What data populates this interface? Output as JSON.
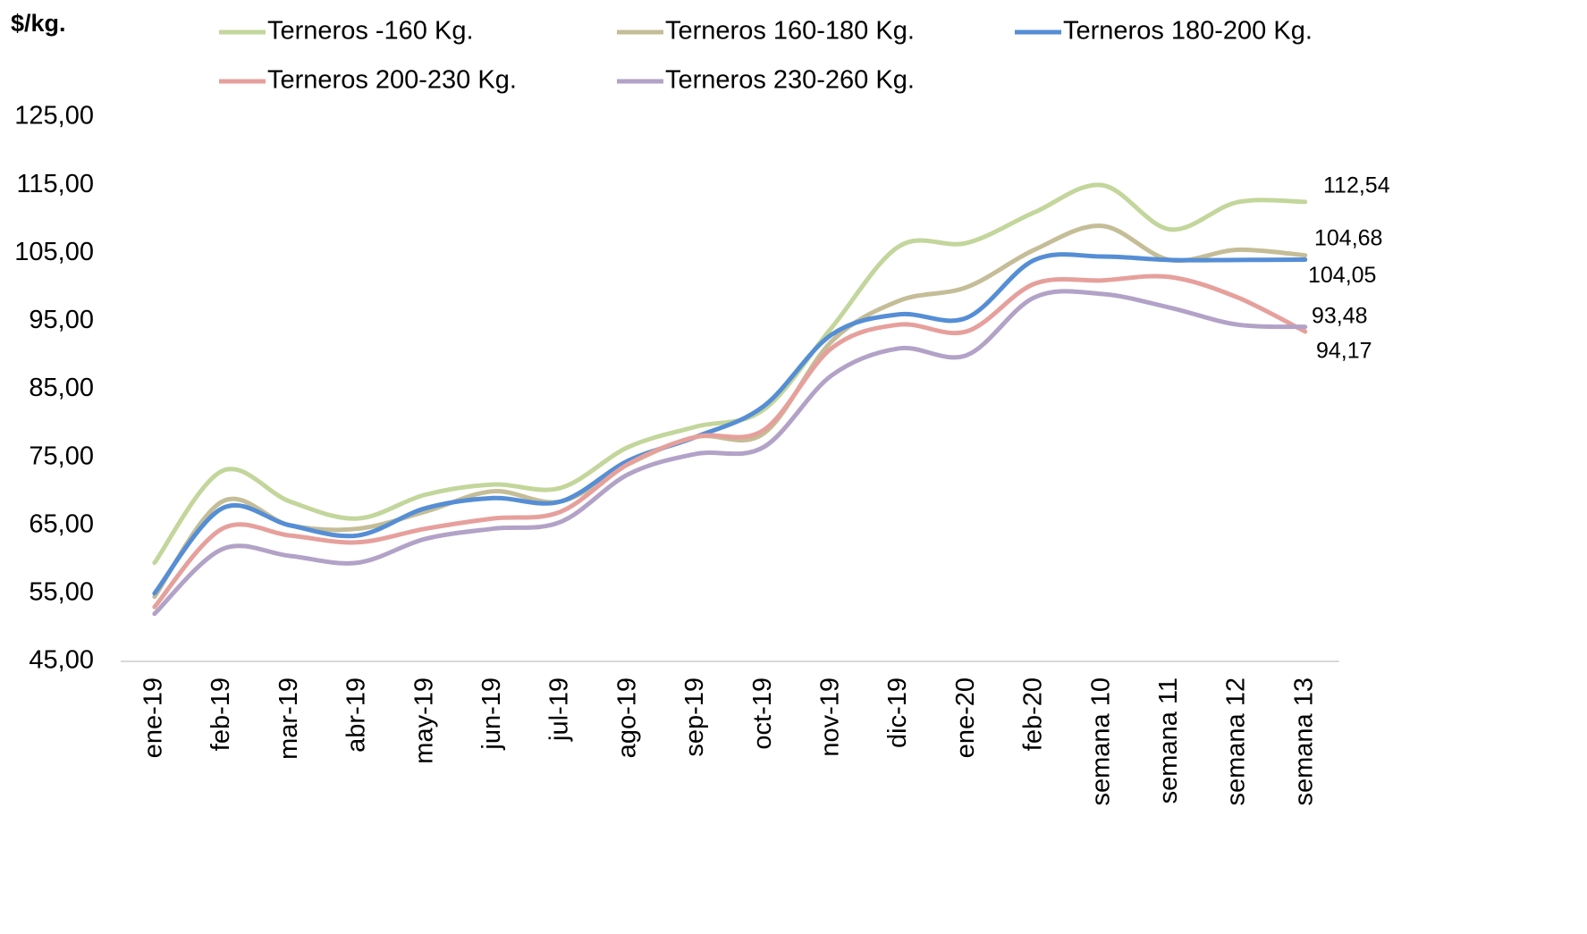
{
  "chart_data": {
    "type": "line",
    "y_unit": "$/kg.",
    "categories": [
      "ene-19",
      "feb-19",
      "mar-19",
      "abr-19",
      "may-19",
      "jun-19",
      "jul-19",
      "ago-19",
      "sep-19",
      "oct-19",
      "nov-19",
      "dic-19",
      "ene-20",
      "feb-20",
      "semana 10",
      "semana 11",
      "semana 12",
      "semana 13"
    ],
    "series": [
      {
        "name": "Terneros -160 Kg.",
        "color": "#c3d69b",
        "label_color": "#92d050",
        "values": [
          59.5,
          73,
          68.5,
          66,
          69.5,
          71,
          70.5,
          76.5,
          79.5,
          82,
          94,
          106,
          106.5,
          111,
          115,
          108.5,
          112.5,
          112.54
        ],
        "value_labels": [
          null,
          null,
          null,
          null,
          null,
          null,
          null,
          null,
          null,
          null,
          null,
          null,
          null,
          null,
          null,
          null,
          null,
          "112,54"
        ]
      },
      {
        "name": "Terneros 160-180 Kg.",
        "color": "#c4bd97",
        "label_color": "#948a54",
        "values": [
          54.5,
          68.5,
          65,
          64.5,
          67,
          70,
          68.5,
          74,
          78,
          78.5,
          92,
          98,
          100,
          105.5,
          109,
          104,
          105.5,
          104.68
        ],
        "value_labels": [
          null,
          null,
          null,
          null,
          null,
          null,
          null,
          null,
          null,
          null,
          null,
          null,
          null,
          null,
          null,
          null,
          null,
          "104,68"
        ]
      },
      {
        "name": "Terneros 180-200 Kg.",
        "color": "#558ed5",
        "label_color": "#0070c0",
        "values": [
          55,
          67.5,
          65,
          63.5,
          67.5,
          69,
          68.5,
          74.5,
          78,
          82.5,
          93,
          96,
          95.5,
          104,
          104.5,
          104,
          104,
          104.05
        ],
        "value_labels": [
          null,
          null,
          null,
          null,
          null,
          null,
          null,
          null,
          null,
          null,
          null,
          null,
          null,
          null,
          null,
          null,
          null,
          "104,05"
        ]
      },
      {
        "name": "Terneros 200-230 Kg.",
        "color": "#e6a09c",
        "label_color": "#c00000",
        "values": [
          53,
          64.5,
          63.5,
          62.5,
          64.5,
          66,
          67,
          74,
          78,
          79,
          91,
          94.5,
          93.5,
          100.5,
          101,
          101.5,
          98.5,
          93.48
        ],
        "value_labels": [
          null,
          null,
          null,
          null,
          null,
          null,
          null,
          null,
          null,
          null,
          null,
          null,
          null,
          null,
          null,
          null,
          null,
          "93,48"
        ]
      },
      {
        "name": "Terneros 230-260 Kg.",
        "color": "#b3a2c7",
        "label_color": "#a99bc9",
        "values": [
          52,
          61.5,
          60.5,
          59.5,
          63,
          64.5,
          65.5,
          72.5,
          75.5,
          76.5,
          87,
          91,
          90,
          98.5,
          99,
          97,
          94.5,
          94.17
        ],
        "value_labels": [
          null,
          null,
          null,
          null,
          null,
          null,
          null,
          null,
          null,
          null,
          null,
          null,
          null,
          null,
          null,
          null,
          null,
          "94,17"
        ]
      }
    ],
    "ylim": [
      45,
      125
    ],
    "yticks": [
      {
        "value": 45,
        "label": "45,00"
      },
      {
        "value": 55,
        "label": "55,00"
      },
      {
        "value": 65,
        "label": "65,00"
      },
      {
        "value": 75,
        "label": "75,00"
      },
      {
        "value": 85,
        "label": "85,00"
      },
      {
        "value": 95,
        "label": "95,00"
      },
      {
        "value": 105,
        "label": "105,00"
      },
      {
        "value": 115,
        "label": "115,00"
      },
      {
        "value": 125,
        "label": "125,00"
      }
    ],
    "grid": false
  }
}
